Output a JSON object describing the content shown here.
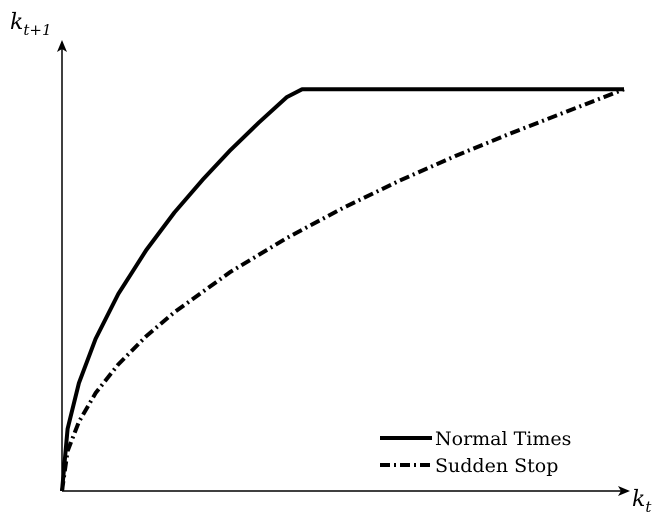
{
  "chart_data": {
    "type": "line",
    "title": "",
    "xlabel": {
      "base": "k",
      "subscript": "t"
    },
    "ylabel": {
      "base": "k",
      "subscript": "t+1"
    },
    "xlim": [
      0,
      1
    ],
    "ylim": [
      0,
      1
    ],
    "grid": false,
    "legend_position": "bottom-right",
    "series": [
      {
        "name": "Normal Times",
        "style": "solid",
        "color": "#000000",
        "x": [
          0,
          0.01,
          0.03,
          0.06,
          0.1,
          0.15,
          0.2,
          0.25,
          0.3,
          0.35,
          0.4,
          0.427,
          0.5,
          0.6,
          0.7,
          0.8,
          0.9,
          1.0
        ],
        "y": [
          0,
          0.151,
          0.262,
          0.37,
          0.478,
          0.585,
          0.676,
          0.755,
          0.828,
          0.894,
          0.956,
          0.975,
          0.975,
          0.975,
          0.975,
          0.975,
          0.975,
          0.975
        ]
      },
      {
        "name": "Sudden Stop",
        "style": "dash-dot",
        "color": "#000000",
        "x": [
          0,
          0.01,
          0.03,
          0.06,
          0.1,
          0.15,
          0.2,
          0.3,
          0.4,
          0.5,
          0.6,
          0.7,
          0.8,
          0.9,
          1.0
        ],
        "y": [
          0,
          0.097,
          0.168,
          0.238,
          0.307,
          0.376,
          0.434,
          0.532,
          0.614,
          0.687,
          0.753,
          0.813,
          0.869,
          0.922,
          0.975
        ]
      }
    ]
  }
}
